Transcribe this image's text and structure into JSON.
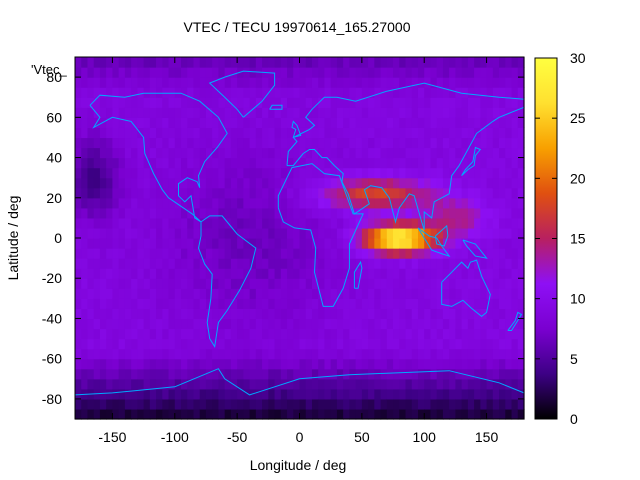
{
  "chart_data": {
    "type": "heatmap",
    "title": "VTEC / TECU 19970614_165.27000",
    "xlabel": "Longitude / deg",
    "ylabel": "Latitude / deg",
    "xlim": [
      -180,
      180
    ],
    "ylim": [
      -90,
      90
    ],
    "xticks": [
      -150,
      -100,
      -50,
      0,
      50,
      100,
      150
    ],
    "yticks": [
      -80,
      -60,
      -40,
      -20,
      0,
      20,
      40,
      60,
      80
    ],
    "series_key": "'Vtec_",
    "colorbar": {
      "range": [
        0,
        30
      ],
      "ticks": [
        0,
        5,
        10,
        15,
        20,
        25,
        30
      ],
      "palette": [
        "#000000",
        "#3d0085",
        "#7a00d0",
        "#8e10f5",
        "#b82060",
        "#e05010",
        "#f8a000",
        "#ffe030",
        "#ffff40"
      ]
    },
    "coastline_color": "#00a8ff",
    "grid_resolution": {
      "lon_step": 5,
      "lat_step": 5
    },
    "features": [
      {
        "name": "equatorial anomaly peak",
        "lon": 80,
        "lat": 0,
        "value": 29,
        "lon_spread": 28,
        "lat_spread": 7
      },
      {
        "name": "northern crest",
        "lon": 60,
        "lat": 22,
        "value": 18,
        "lon_spread": 45,
        "lat_spread": 8
      },
      {
        "name": "east asia crest",
        "lon": 125,
        "lat": 10,
        "value": 14,
        "lon_spread": 25,
        "lat_spread": 10
      },
      {
        "name": "pacific dayside",
        "lon": -170,
        "lat": 0,
        "value": 9,
        "lon_spread": 15,
        "lat_spread": 10
      },
      {
        "name": "north pacific",
        "lon": -165,
        "lat": 30,
        "value": 4,
        "lon_spread": 20,
        "lat_spread": 20
      }
    ],
    "background_value": 9
  }
}
